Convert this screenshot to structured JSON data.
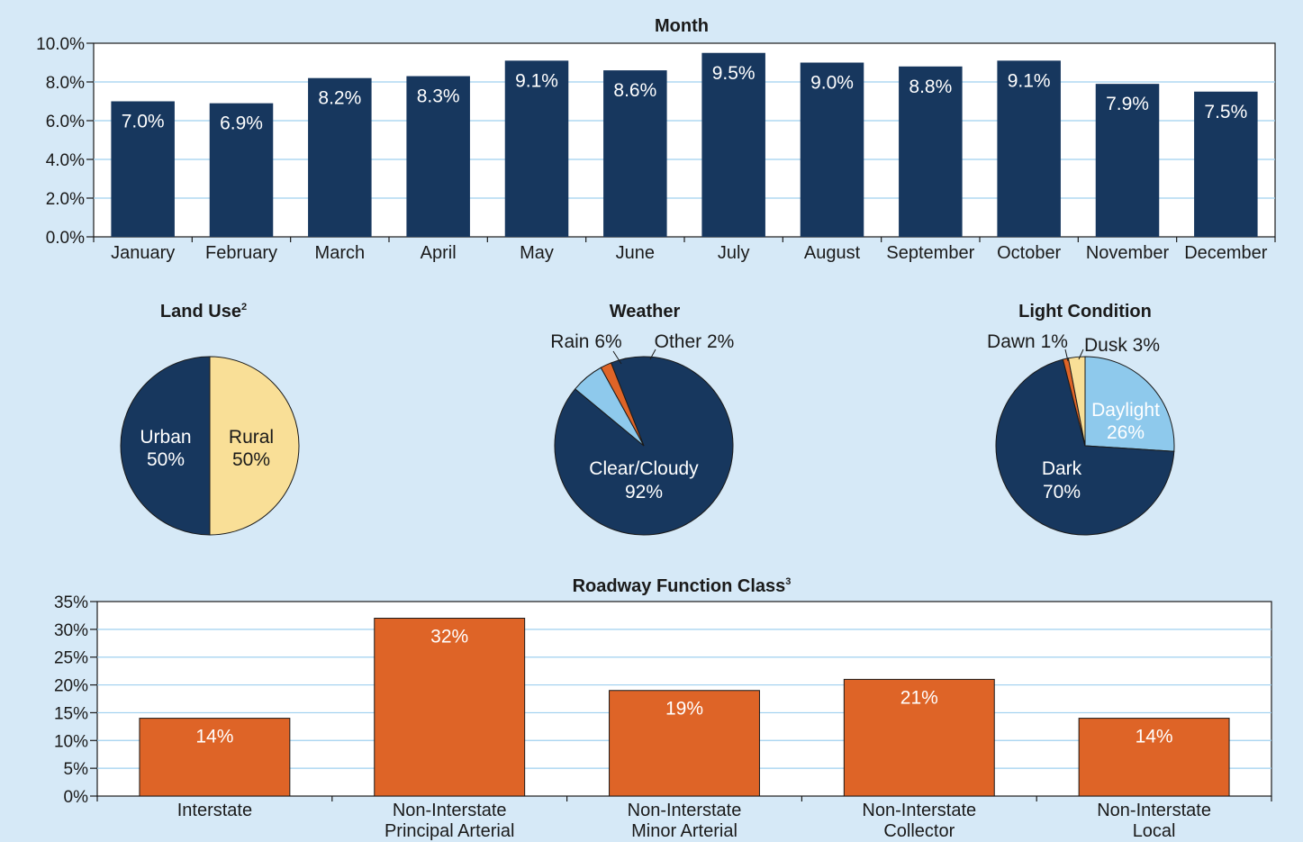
{
  "colors": {
    "background": "#d6e9f7",
    "navy": "#17375e",
    "orange": "#de6427",
    "light_blue": "#8ec9ec",
    "light_yellow": "#f9df97",
    "plot_bg": "#ffffff"
  },
  "chart_data": [
    {
      "type": "bar",
      "title": "Month",
      "categories": [
        "January",
        "February",
        "March",
        "April",
        "May",
        "June",
        "July",
        "August",
        "September",
        "October",
        "November",
        "December"
      ],
      "values": [
        7.0,
        6.9,
        8.2,
        8.3,
        9.1,
        8.6,
        9.5,
        9.0,
        8.8,
        9.1,
        7.9,
        7.5
      ],
      "value_labels": [
        "7.0%",
        "6.9%",
        "8.2%",
        "8.3%",
        "9.1%",
        "8.6%",
        "9.5%",
        "9.0%",
        "8.8%",
        "9.1%",
        "7.9%",
        "7.5%"
      ],
      "ylim": [
        0,
        10
      ],
      "yticks": [
        0,
        2,
        4,
        6,
        8,
        10
      ],
      "ytick_labels": [
        "0.0%",
        "2.0%",
        "4.0%",
        "6.0%",
        "8.0%",
        "10.0%"
      ],
      "grid": true,
      "color": "#17375e"
    },
    {
      "type": "pie",
      "title": "Land Use",
      "title_sup": "2",
      "slices": [
        {
          "label": "Urban",
          "pct_label": "50%",
          "value": 50,
          "color": "#17375e",
          "text_color": "#ffffff"
        },
        {
          "label": "Rural",
          "pct_label": "50%",
          "value": 50,
          "color": "#f9df97",
          "text_color": "#1a1a1a"
        }
      ]
    },
    {
      "type": "pie",
      "title": "Weather",
      "slices": [
        {
          "label": "Clear/Cloudy",
          "pct_label": "92%",
          "value": 92,
          "color": "#17375e",
          "text_color": "#ffffff"
        },
        {
          "label": "Rain 6%",
          "value": 6,
          "color": "#8ec9ec",
          "text_color": "#1a1a1a"
        },
        {
          "label": "Other 2%",
          "value": 2,
          "color": "#de6427",
          "text_color": "#1a1a1a"
        }
      ]
    },
    {
      "type": "pie",
      "title": "Light Condition",
      "slices": [
        {
          "label": "Daylight",
          "pct_label": "26%",
          "value": 26,
          "color": "#8ec9ec",
          "text_color": "#ffffff"
        },
        {
          "label": "Dark",
          "pct_label": "70%",
          "value": 70,
          "color": "#17375e",
          "text_color": "#ffffff"
        },
        {
          "label": "Dawn 1%",
          "value": 1,
          "color": "#de6427",
          "text_color": "#1a1a1a"
        },
        {
          "label": "Dusk 3%",
          "value": 3,
          "color": "#f9df97",
          "text_color": "#1a1a1a"
        }
      ]
    },
    {
      "type": "bar",
      "title": "Roadway Function Class",
      "title_sup": "3",
      "categories": [
        [
          "Interstate"
        ],
        [
          "Non-Interstate",
          "Principal Arterial"
        ],
        [
          "Non-Interstate",
          "Minor Arterial"
        ],
        [
          "Non-Interstate",
          "Collector"
        ],
        [
          "Non-Interstate",
          "Local"
        ]
      ],
      "values": [
        14,
        32,
        19,
        21,
        14
      ],
      "value_labels": [
        "14%",
        "32%",
        "19%",
        "21%",
        "14%"
      ],
      "ylim": [
        0,
        35
      ],
      "yticks": [
        0,
        5,
        10,
        15,
        20,
        25,
        30,
        35
      ],
      "ytick_labels": [
        "0%",
        "5%",
        "10%",
        "15%",
        "20%",
        "25%",
        "30%",
        "35%"
      ],
      "grid": true,
      "color": "#de6427"
    }
  ]
}
